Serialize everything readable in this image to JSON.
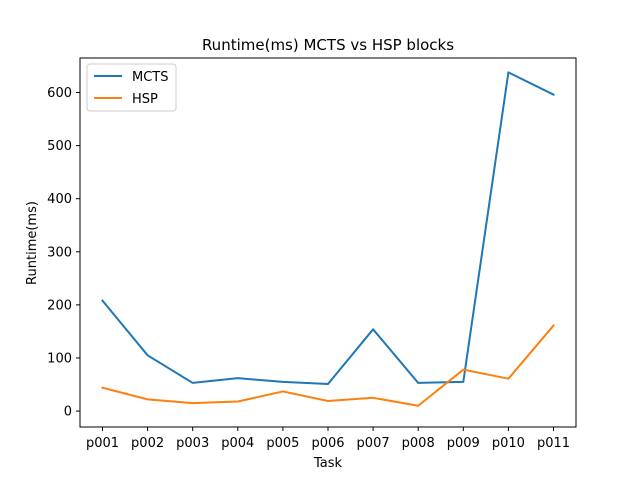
{
  "chart_data": {
    "type": "line",
    "title": "Runtime(ms) MCTS vs HSP blocks",
    "xlabel": "Task",
    "ylabel": "Runtime(ms)",
    "categories": [
      "p001",
      "p002",
      "p003",
      "p004",
      "p005",
      "p006",
      "p007",
      "p008",
      "p009",
      "p010",
      "p011"
    ],
    "series": [
      {
        "name": "MCTS",
        "color": "#1f77b4",
        "values": [
          208,
          105,
          53,
          62,
          55,
          51,
          154,
          53,
          55,
          638,
          596
        ]
      },
      {
        "name": "HSP",
        "color": "#ff7f0e",
        "values": [
          44,
          22,
          15,
          18,
          37,
          19,
          25,
          10,
          78,
          61,
          161
        ]
      }
    ],
    "ylim": [
      -30,
      665
    ],
    "yticks": [
      "0",
      "100",
      "200",
      "300",
      "400",
      "500",
      "600"
    ],
    "grid": false,
    "legend_position": "upper-left"
  }
}
